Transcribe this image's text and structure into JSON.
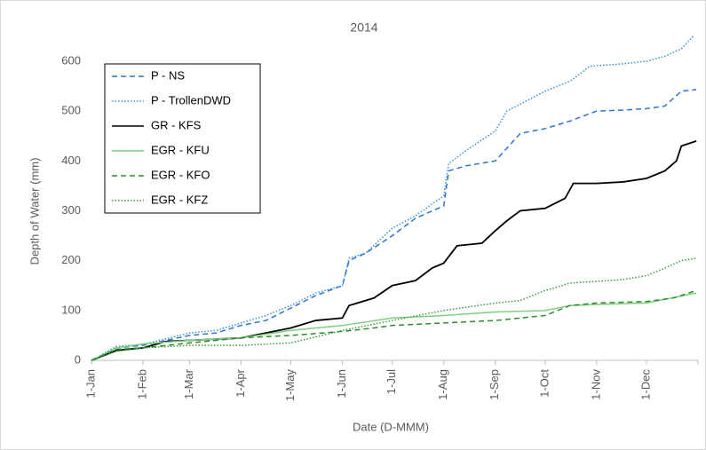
{
  "chart_data": {
    "type": "line",
    "title": "2014",
    "xlabel": "Date (D-MMM)",
    "ylabel": "Depth of Water (mm)",
    "xlim": [
      0,
      365
    ],
    "xticks": [
      {
        "value": 0,
        "label": "1-Jan"
      },
      {
        "value": 31,
        "label": "1-Feb"
      },
      {
        "value": 59,
        "label": "1-Mar"
      },
      {
        "value": 90,
        "label": "1-Apr"
      },
      {
        "value": 120,
        "label": "1-May"
      },
      {
        "value": 151,
        "label": "1-Jun"
      },
      {
        "value": 181,
        "label": "1-Jul"
      },
      {
        "value": 212,
        "label": "1-Aug"
      },
      {
        "value": 243,
        "label": "1-Sep"
      },
      {
        "value": 273,
        "label": "1-Oct"
      },
      {
        "value": 304,
        "label": "1-Nov"
      },
      {
        "value": 334,
        "label": "1-Dec"
      }
    ],
    "ylim": [
      0,
      650
    ],
    "yticks": [
      0,
      100,
      200,
      300,
      400,
      500,
      600
    ],
    "grid": false,
    "legend": "upper left",
    "series": [
      {
        "name": "P - NS",
        "color": "#2e75c9",
        "dash": "dashed",
        "x": [
          0,
          15,
          31,
          59,
          75,
          90,
          105,
          120,
          135,
          151,
          155,
          165,
          181,
          195,
          212,
          215,
          225,
          243,
          258,
          273,
          288,
          304,
          320,
          334,
          345,
          355,
          364
        ],
        "values": [
          0,
          25,
          30,
          50,
          55,
          70,
          80,
          105,
          130,
          150,
          200,
          215,
          250,
          285,
          310,
          380,
          390,
          400,
          455,
          465,
          480,
          500,
          502,
          505,
          510,
          540,
          543
        ]
      },
      {
        "name": "P - TrollenDWD",
        "color": "#3a8fdb",
        "dash": "dotted",
        "x": [
          0,
          15,
          31,
          59,
          75,
          90,
          105,
          120,
          135,
          151,
          155,
          165,
          181,
          195,
          212,
          215,
          225,
          243,
          250,
          273,
          288,
          300,
          320,
          334,
          345,
          355,
          362
        ],
        "values": [
          0,
          28,
          32,
          55,
          60,
          75,
          90,
          110,
          135,
          150,
          205,
          215,
          265,
          290,
          330,
          395,
          420,
          460,
          500,
          540,
          560,
          590,
          595,
          600,
          610,
          625,
          650
        ]
      },
      {
        "name": "GR - KFS",
        "color": "#000000",
        "dash": "solid",
        "x": [
          0,
          15,
          31,
          45,
          59,
          90,
          105,
          120,
          135,
          151,
          155,
          170,
          181,
          195,
          205,
          212,
          220,
          235,
          243,
          250,
          258,
          273,
          285,
          290,
          304,
          320,
          334,
          345,
          352,
          355,
          364
        ],
        "values": [
          0,
          20,
          25,
          38,
          40,
          45,
          55,
          65,
          80,
          85,
          110,
          125,
          150,
          160,
          185,
          195,
          230,
          235,
          260,
          280,
          300,
          305,
          325,
          355,
          355,
          358,
          365,
          380,
          400,
          430,
          440
        ]
      },
      {
        "name": "EGR - KFU",
        "color": "#7fce7f",
        "dash": "solid",
        "x": [
          0,
          15,
          31,
          59,
          90,
          120,
          151,
          181,
          212,
          243,
          273,
          288,
          304,
          334,
          364
        ],
        "values": [
          0,
          25,
          33,
          40,
          45,
          60,
          70,
          85,
          90,
          97,
          100,
          110,
          112,
          115,
          135
        ]
      },
      {
        "name": "EGR - KFO",
        "color": "#2e8b2e",
        "dash": "dashed",
        "x": [
          0,
          15,
          31,
          59,
          90,
          120,
          151,
          170,
          181,
          212,
          243,
          258,
          273,
          288,
          304,
          334,
          350,
          364
        ],
        "values": [
          0,
          22,
          25,
          35,
          45,
          50,
          58,
          65,
          70,
          75,
          80,
          85,
          90,
          110,
          115,
          118,
          125,
          140
        ]
      },
      {
        "name": "EGR - KFZ",
        "color": "#3a9a3a",
        "dash": "dotted",
        "x": [
          0,
          15,
          31,
          59,
          90,
          120,
          151,
          181,
          212,
          243,
          258,
          273,
          288,
          320,
          334,
          345,
          355,
          364
        ],
        "values": [
          0,
          18,
          25,
          30,
          30,
          35,
          60,
          80,
          100,
          115,
          120,
          140,
          155,
          162,
          170,
          185,
          200,
          205
        ]
      }
    ]
  }
}
